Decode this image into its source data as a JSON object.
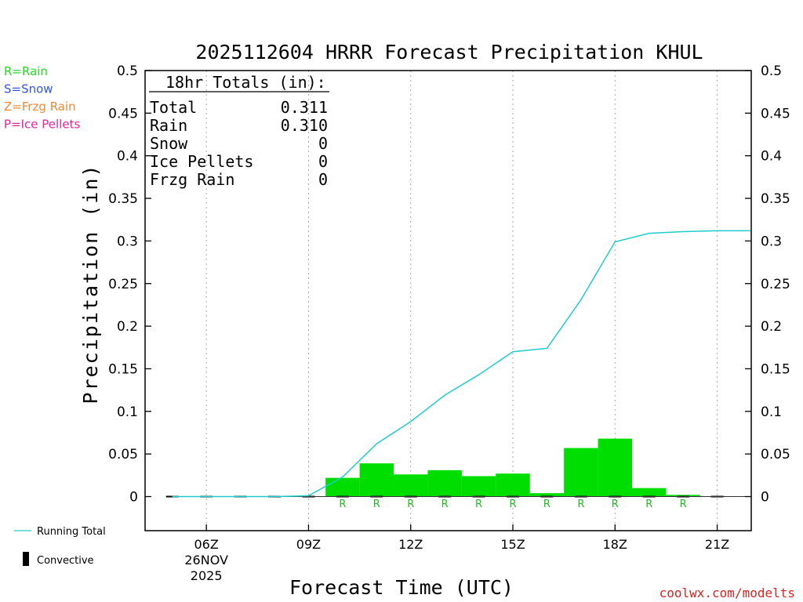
{
  "chart_data": {
    "type": "bar",
    "title": "2025112604 HRRR Forecast Precipitation KHUL",
    "xlabel": "Forecast Time (UTC)",
    "ylabel": "Precipitation (in)",
    "ylim": [
      -0.04,
      0.5
    ],
    "yticks": [
      0,
      0.05,
      0.1,
      0.15,
      0.2,
      0.25,
      0.3,
      0.35,
      0.4,
      0.45,
      0.5
    ],
    "ytick_labels": [
      "0",
      "0.05",
      "0.1",
      "0.15",
      "0.2",
      "0.25",
      "0.3",
      "0.35",
      "0.4",
      "0.45",
      "0.5"
    ],
    "xlim": [
      4.2,
      22
    ],
    "xticks": [
      {
        "hour": 6,
        "label": "06Z",
        "sub1": "26NOV",
        "sub2": "2025"
      },
      {
        "hour": 9,
        "label": "09Z"
      },
      {
        "hour": 12,
        "label": "12Z"
      },
      {
        "hour": 15,
        "label": "15Z"
      },
      {
        "hour": 18,
        "label": "18Z"
      },
      {
        "hour": 21,
        "label": "21Z"
      }
    ],
    "bar_width_hours": 1,
    "bars": [
      {
        "hour": 10,
        "value": 0.022,
        "ptype": "R"
      },
      {
        "hour": 11,
        "value": 0.039,
        "ptype": "R"
      },
      {
        "hour": 12,
        "value": 0.026,
        "ptype": "R"
      },
      {
        "hour": 13,
        "value": 0.031,
        "ptype": "R"
      },
      {
        "hour": 14,
        "value": 0.024,
        "ptype": "R"
      },
      {
        "hour": 15,
        "value": 0.027,
        "ptype": "R"
      },
      {
        "hour": 16,
        "value": 0.004,
        "ptype": "R"
      },
      {
        "hour": 17,
        "value": 0.057,
        "ptype": "R"
      },
      {
        "hour": 18,
        "value": 0.068,
        "ptype": "R"
      },
      {
        "hour": 19,
        "value": 0.01,
        "ptype": "R"
      },
      {
        "hour": 20,
        "value": 0.002,
        "ptype": "R"
      }
    ],
    "running_total": {
      "name": "Running Total",
      "x": [
        5,
        6,
        7,
        8,
        9,
        10,
        11,
        12,
        13,
        14,
        15,
        16,
        17,
        18,
        19,
        20,
        21,
        22
      ],
      "y": [
        0,
        0,
        0,
        0,
        0.001,
        0.023,
        0.062,
        0.088,
        0.119,
        0.143,
        0.17,
        0.174,
        0.231,
        0.299,
        0.309,
        0.311,
        0.312,
        0.312
      ]
    },
    "convective": {
      "name": "Convective",
      "hours": [
        5,
        6,
        7,
        8,
        9,
        10,
        11,
        12,
        13,
        14,
        15,
        16,
        17,
        18,
        19,
        20,
        21
      ],
      "values": [
        0,
        0,
        0,
        0,
        0,
        0,
        0,
        0,
        0,
        0,
        0,
        0,
        0,
        0,
        0,
        0,
        0
      ]
    },
    "legend_ptypes": [
      {
        "text": "R=Rain",
        "color": "#22dd22"
      },
      {
        "text": "S=Snow",
        "color": "#3355ee"
      },
      {
        "text": "Z=Frzg Rain",
        "color": "#f0883a"
      },
      {
        "text": "P=Ice Pellets",
        "color": "#ee2299"
      }
    ],
    "totals_box": {
      "header": "18hr Totals (in):",
      "rows": [
        {
          "label": "Total",
          "value": "0.311"
        },
        {
          "label": "Rain",
          "value": "0.310"
        },
        {
          "label": "Snow",
          "value": "0"
        },
        {
          "label": "Ice Pellets",
          "value": "0"
        },
        {
          "label": "Frzg Rain",
          "value": "0"
        }
      ]
    },
    "credit": "coolwx.com/modelts",
    "colors": {
      "bar": "#00dd00",
      "line": "#22cccc",
      "rain_label": "#22bb22",
      "credit": "#dd2222",
      "grid": "#aaaaaa"
    }
  }
}
